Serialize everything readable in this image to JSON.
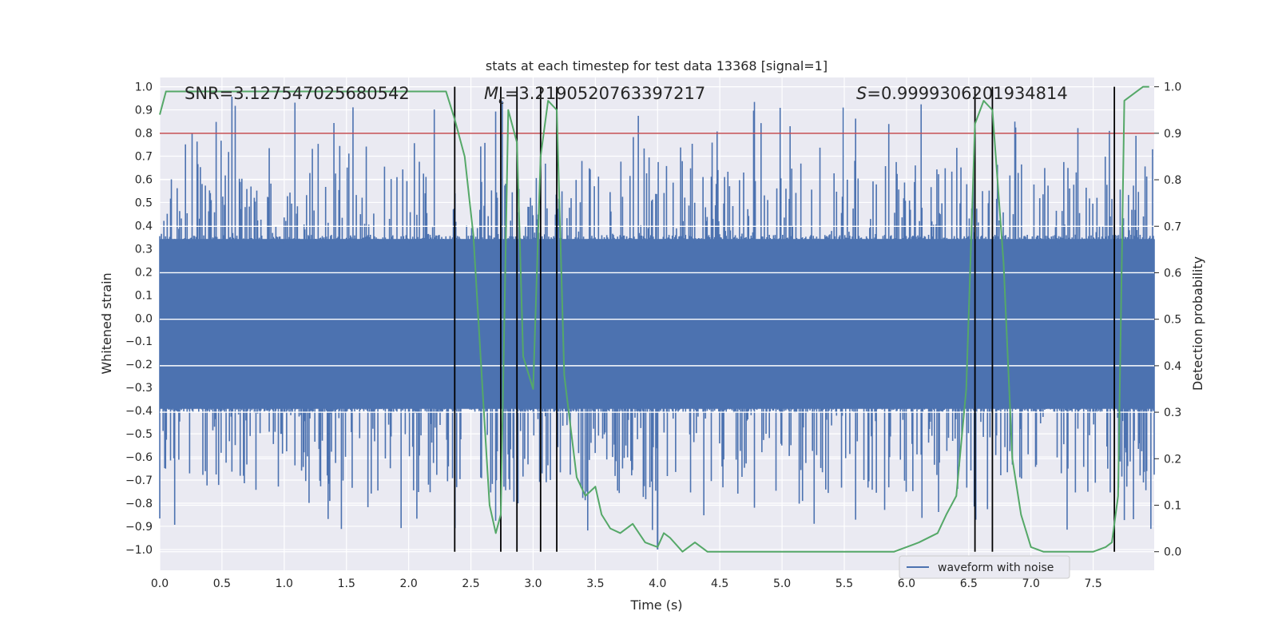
{
  "chart_data": {
    "type": "line",
    "title": "stats at each timestep for test data 13368 [signal=1]",
    "xlabel": "Time (s)",
    "ylabel_left": "Whitened strain",
    "ylabel_right": "Detection probability",
    "xlim": [
      0.0,
      7.99
    ],
    "ylim_left": [
      -1.09,
      1.04
    ],
    "ylim_right": [
      -0.04,
      1.02
    ],
    "x_ticks": [
      "0.0",
      "0.5",
      "1.0",
      "1.5",
      "2.0",
      "2.5",
      "3.0",
      "3.5",
      "4.0",
      "4.5",
      "5.0",
      "5.5",
      "6.0",
      "6.5",
      "7.0",
      "7.5"
    ],
    "y_left_ticks": [
      "1.0",
      "0.9",
      "0.8",
      "0.7",
      "0.6",
      "0.5",
      "0.4",
      "0.3",
      "0.2",
      "0.1",
      "0.0",
      "−0.1",
      "−0.2",
      "−0.3",
      "−0.4",
      "−0.5",
      "−0.6",
      "−0.7",
      "−0.8",
      "−0.9",
      "−1.0"
    ],
    "y_right_ticks": [
      "1.0",
      "0.9",
      "0.8",
      "0.7",
      "0.6",
      "0.5",
      "0.4",
      "0.3",
      "0.2",
      "0.1",
      "0.0"
    ],
    "annotations": {
      "snr": "SNR=3.127547025680542",
      "mc_prefix": "M",
      "mc_sub": "c",
      "mc_value": "=3.2190520763397217",
      "s_prefix": "S",
      "s_value": "=0.9999306201934814"
    },
    "threshold": {
      "value": 0.9,
      "color": "#c44e52"
    },
    "event_markers_x": [
      2.37,
      2.74,
      2.87,
      3.06,
      3.19,
      6.55,
      6.69,
      7.67
    ],
    "waveform": {
      "name": "waveform with noise",
      "color": "#4c72b0",
      "samples": 1200,
      "core_amplitude": 0.36,
      "max_amplitude": 0.96,
      "min_amplitude": -1.0
    },
    "probability_series": {
      "name": "Detection probability",
      "color": "#55a868",
      "x": [
        0.0,
        0.05,
        0.1,
        0.3,
        0.6,
        1.0,
        1.5,
        2.0,
        2.2,
        2.3,
        2.37,
        2.45,
        2.52,
        2.6,
        2.65,
        2.7,
        2.74,
        2.8,
        2.87,
        2.92,
        3.0,
        3.06,
        3.12,
        3.19,
        3.25,
        3.35,
        3.42,
        3.5,
        3.55,
        3.62,
        3.7,
        3.8,
        3.9,
        4.0,
        4.05,
        4.1,
        4.2,
        4.3,
        4.4,
        4.6,
        5.0,
        5.5,
        5.9,
        6.1,
        6.25,
        6.32,
        6.4,
        6.48,
        6.55,
        6.62,
        6.69,
        6.78,
        6.85,
        6.92,
        7.0,
        7.1,
        7.3,
        7.5,
        7.6,
        7.65,
        7.7,
        7.75,
        7.85,
        7.9,
        7.95
      ],
      "y": [
        0.94,
        0.99,
        0.99,
        0.99,
        0.99,
        0.99,
        0.99,
        0.99,
        0.99,
        0.99,
        0.93,
        0.85,
        0.68,
        0.32,
        0.1,
        0.04,
        0.08,
        0.95,
        0.88,
        0.42,
        0.35,
        0.85,
        0.97,
        0.95,
        0.38,
        0.16,
        0.12,
        0.14,
        0.08,
        0.05,
        0.04,
        0.06,
        0.02,
        0.01,
        0.04,
        0.03,
        0.0,
        0.02,
        0.0,
        0.0,
        0.0,
        0.0,
        0.0,
        0.02,
        0.04,
        0.08,
        0.12,
        0.35,
        0.92,
        0.97,
        0.95,
        0.62,
        0.2,
        0.08,
        0.01,
        0.0,
        0.0,
        0.0,
        0.01,
        0.02,
        0.12,
        0.97,
        0.99,
        1.0,
        1.0
      ]
    },
    "legend": {
      "label": "waveform with noise",
      "placement": "bottom-right"
    }
  },
  "colors": {
    "plot_background": "#eaeaf2",
    "grid": "#ffffff",
    "marker": "#000000"
  }
}
